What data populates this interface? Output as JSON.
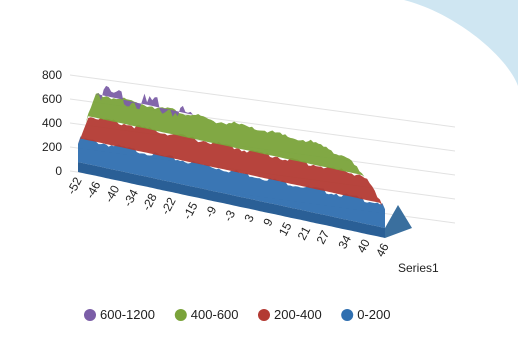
{
  "chart_data": {
    "type": "area",
    "subtype": "3d-surface",
    "title": "",
    "xlabel": "",
    "ylabel": "",
    "ylim": [
      0,
      800
    ],
    "y_ticks": [
      "800",
      "600",
      "400",
      "200",
      "0"
    ],
    "x_ticks": [
      "-52",
      "-46",
      "-40",
      "-34",
      "-28",
      "-22",
      "-15",
      "-9",
      "-3",
      "3",
      "9",
      "15",
      "21",
      "27",
      "34",
      "40",
      "46"
    ],
    "depth_label": "Series1",
    "legend_position": "bottom",
    "bands": [
      {
        "name": "600-1200",
        "color": "#7b5ea7",
        "min": 600,
        "max": 1200
      },
      {
        "name": "400-600",
        "color": "#7aa33a",
        "min": 400,
        "max": 600
      },
      {
        "name": "200-400",
        "color": "#b33a33",
        "min": 200,
        "max": 400
      },
      {
        "name": "0-200",
        "color": "#2f6fb0",
        "min": 0,
        "max": 200
      }
    ],
    "x": [
      -52,
      -46,
      -40,
      -34,
      -28,
      -22,
      -15,
      -9,
      -3,
      3,
      9,
      15,
      21,
      27,
      34,
      40,
      46
    ],
    "values": [
      150,
      620,
      640,
      610,
      620,
      610,
      600,
      580,
      600,
      590,
      600,
      580,
      590,
      560,
      520,
      380,
      150
    ]
  }
}
